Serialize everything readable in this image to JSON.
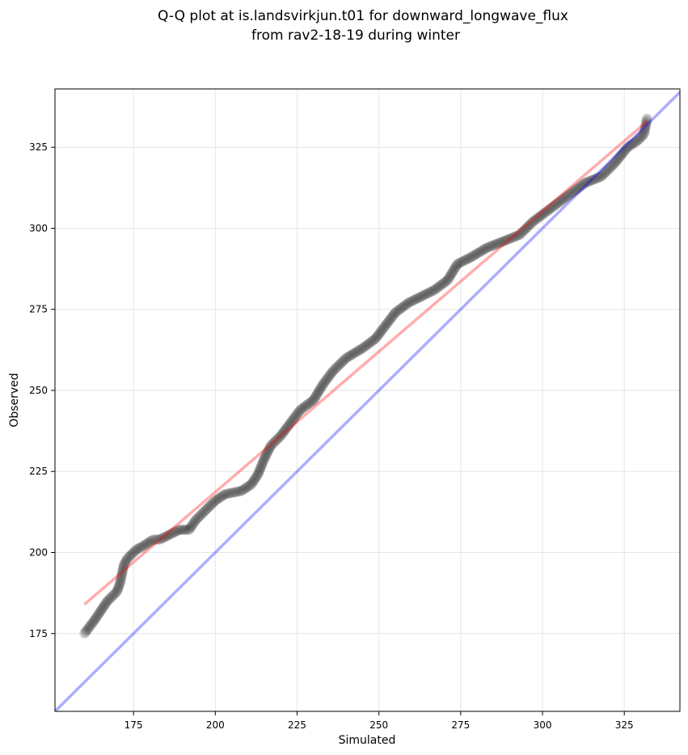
{
  "chart_data": {
    "type": "scatter",
    "title_lines": [
      "Q-Q plot at is.landsvirkjun.t01 for downward_longwave_flux",
      "from rav2-18-19 during winter"
    ],
    "xlabel": "Simulated",
    "ylabel": "Observed",
    "xlim": [
      151,
      342
    ],
    "ylim": [
      151,
      343
    ],
    "xticks": [
      175,
      200,
      225,
      250,
      275,
      300,
      325
    ],
    "yticks": [
      175,
      200,
      225,
      250,
      275,
      300,
      325
    ],
    "grid": true,
    "reference_line": {
      "name": "1:1 line",
      "color": "#0000ff",
      "points": [
        [
          151,
          151
        ],
        [
          342,
          342
        ]
      ]
    },
    "fit_line": {
      "name": "fit line",
      "color": "#ff0000",
      "points": [
        [
          160,
          184
        ],
        [
          332,
          333
        ]
      ]
    },
    "quantile_curve": [
      [
        160,
        175
      ],
      [
        163,
        179
      ],
      [
        165,
        182
      ],
      [
        167,
        185
      ],
      [
        170,
        188
      ],
      [
        171,
        191
      ],
      [
        172,
        196
      ],
      [
        173,
        198
      ],
      [
        176,
        201
      ],
      [
        178,
        202
      ],
      [
        181,
        204
      ],
      [
        183,
        204
      ],
      [
        189,
        207
      ],
      [
        192,
        207
      ],
      [
        194,
        210
      ],
      [
        197,
        213
      ],
      [
        200,
        216
      ],
      [
        203,
        218
      ],
      [
        208,
        219
      ],
      [
        211,
        221
      ],
      [
        213,
        224
      ],
      [
        215,
        229
      ],
      [
        217,
        233
      ],
      [
        220,
        236
      ],
      [
        223,
        240
      ],
      [
        226,
        244
      ],
      [
        230,
        247
      ],
      [
        233,
        252
      ],
      [
        236,
        256
      ],
      [
        240,
        260
      ],
      [
        245,
        263
      ],
      [
        249,
        266
      ],
      [
        252,
        270
      ],
      [
        255,
        274
      ],
      [
        259,
        277
      ],
      [
        263,
        279
      ],
      [
        267,
        281
      ],
      [
        271,
        284
      ],
      [
        274,
        289
      ],
      [
        278,
        291
      ],
      [
        283,
        294
      ],
      [
        288,
        296
      ],
      [
        293,
        298
      ],
      [
        297,
        302
      ],
      [
        301,
        305
      ],
      [
        305,
        308
      ],
      [
        309,
        311
      ],
      [
        313,
        314
      ],
      [
        318,
        316
      ],
      [
        322,
        320
      ],
      [
        326,
        325
      ],
      [
        329,
        327
      ],
      [
        331,
        329
      ],
      [
        332,
        334
      ]
    ],
    "colors": {
      "points": "#000000",
      "reference": "#0000ff",
      "fit": "#ff0000",
      "grid": "#e6e6e6"
    }
  }
}
